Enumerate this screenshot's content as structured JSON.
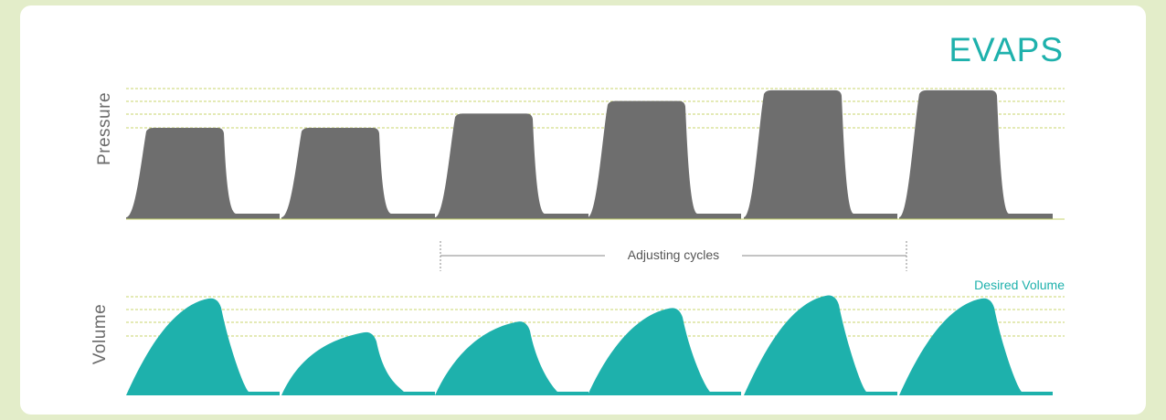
{
  "title": "EVAPS",
  "pressure_label": "Pressure",
  "volume_label": "Volume",
  "adjusting_label": "Adjusting cycles",
  "desired_label": "Desired Volume",
  "colors": {
    "background": "#e3edc9",
    "card": "#ffffff",
    "pressure_fill": "#6e6e6e",
    "volume_fill": "#1eb1ac",
    "title": "#1eb1ac",
    "guide_lines": "#c8d66e",
    "bracket": "#888888"
  },
  "pressure_levels": [
    1.0,
    1.0,
    1.16,
    1.3,
    1.42,
    1.42
  ],
  "volume_levels": [
    1.0,
    0.65,
    0.76,
    0.9,
    1.03,
    1.0
  ]
}
